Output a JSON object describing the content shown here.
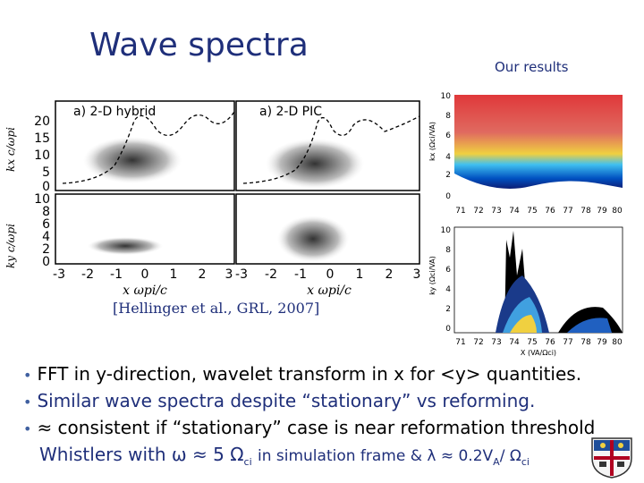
{
  "slide": {
    "title": "Wave spectra",
    "our_results": "Our results",
    "citation": "[Hellinger et al., GRL, 2007]"
  },
  "left_figure": {
    "panel_labels": [
      "a) 2-D hybrid",
      "a) 2-D PIC"
    ],
    "ylabel_top": "kx c/ωpi",
    "ylabel_bottom": "ky c/ωpi",
    "xlabel": "x ωpi/c",
    "yticks_top": [
      "20",
      "15",
      "10",
      "5",
      "0"
    ],
    "yticks_bottom": [
      "10",
      "8",
      "6",
      "4",
      "2",
      "0"
    ],
    "xticks": [
      "-3",
      "-2",
      "-1",
      "0",
      "1",
      "2",
      "3"
    ]
  },
  "right_top_figure": {
    "ylabel": "kx (Ωci/VA)",
    "yticks": [
      "10",
      "8",
      "6",
      "4",
      "2",
      "0"
    ],
    "xticks": [
      "71",
      "72",
      "73",
      "74",
      "75",
      "76",
      "77",
      "78",
      "79",
      "80"
    ]
  },
  "right_bottom_figure": {
    "ylabel": "ky (Ωci/VA)",
    "yticks": [
      "10",
      "8",
      "6",
      "4",
      "2",
      "0"
    ],
    "xticks": [
      "71",
      "72",
      "73",
      "74",
      "75",
      "76",
      "77",
      "78",
      "79",
      "80"
    ],
    "xlabel": "X (VA/Ωci)"
  },
  "bullets": [
    "FFT in y-direction, wavelet transform in x for <y> quantities.",
    "Similar wave spectra despite “stationary” vs reforming.",
    "≈ consistent if “stationary” case is near reformation threshold"
  ],
  "whistler": {
    "prefix": "Whistlers with",
    "omega": "ω",
    "approx_5": "≈ 5 Ω",
    "ci1": "ci",
    "middle": "in simulation frame & λ ≈ 0.2V",
    "a": "A",
    "slash": "/ Ω",
    "ci2": "ci"
  },
  "colors": {
    "title": "#1f2f7a",
    "bullet_dot": "#4060a0"
  }
}
